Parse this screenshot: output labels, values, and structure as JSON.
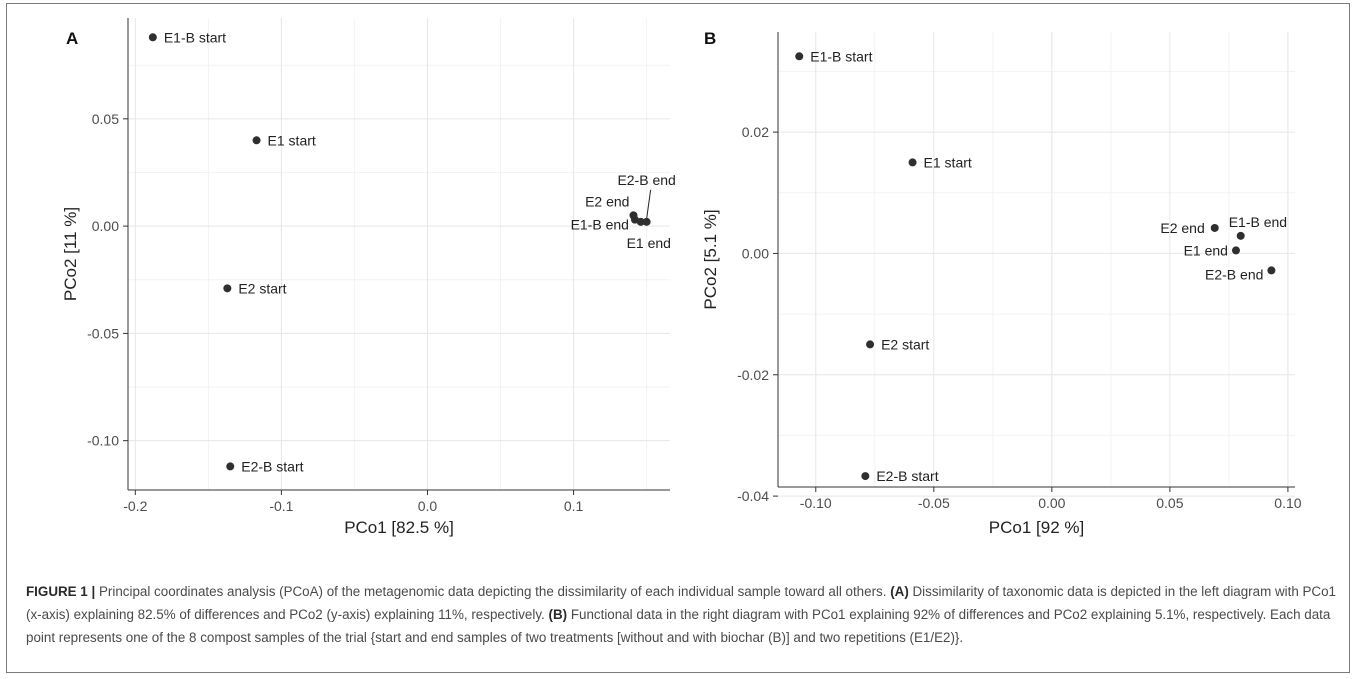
{
  "chart_data": [
    {
      "type": "scatter",
      "panel_label": "A",
      "xlabel": "PCo1 [82.5 %]",
      "ylabel": "PCo2 [11 %]",
      "xlim": [
        -0.205,
        0.166
      ],
      "ylim": [
        -0.123,
        0.097
      ],
      "xticks": [
        -0.2,
        -0.1,
        0.0,
        0.1
      ],
      "xtick_labels": [
        "-0.2",
        "-0.1",
        "0.0",
        "0.1"
      ],
      "yticks": [
        -0.1,
        -0.05,
        0.0,
        0.05
      ],
      "ytick_labels": [
        "-0.10",
        "-0.05",
        "0.00",
        "0.05"
      ],
      "grid": true,
      "points": [
        {
          "label": "E1-B start",
          "x": -0.188,
          "y": 0.088
        },
        {
          "label": "E1 start",
          "x": -0.117,
          "y": 0.04
        },
        {
          "label": "E2 start",
          "x": -0.137,
          "y": -0.029
        },
        {
          "label": "E2-B start",
          "x": -0.135,
          "y": -0.112
        },
        {
          "label": "E2 end",
          "x": 0.141,
          "y": 0.005
        },
        {
          "label": "E1-B end",
          "x": 0.142,
          "y": 0.003
        },
        {
          "label": "E1 end",
          "x": 0.146,
          "y": 0.002
        },
        {
          "label": "E2-B end",
          "x": 0.15,
          "y": 0.002
        }
      ]
    },
    {
      "type": "scatter",
      "panel_label": "B",
      "xlabel": "PCo1 [92 %]",
      "ylabel": "PCo2 [5.1 %]",
      "xlim": [
        -0.116,
        0.103
      ],
      "ylim": [
        -0.0385,
        0.0365
      ],
      "xticks": [
        -0.1,
        -0.05,
        0.0,
        0.05,
        0.1
      ],
      "xtick_labels": [
        "-0.10",
        "-0.05",
        "0.00",
        "0.05",
        "0.10"
      ],
      "yticks": [
        -0.04,
        -0.02,
        0.0,
        0.02
      ],
      "ytick_labels": [
        "-0.04",
        "-0.02",
        "0.00",
        "0.02"
      ],
      "grid": true,
      "points": [
        {
          "label": "E1-B start",
          "x": -0.107,
          "y": 0.0325
        },
        {
          "label": "E1 start",
          "x": -0.059,
          "y": 0.015
        },
        {
          "label": "E2 start",
          "x": -0.077,
          "y": -0.015
        },
        {
          "label": "E2-B start",
          "x": -0.079,
          "y": -0.0367
        },
        {
          "label": "E2 end",
          "x": 0.069,
          "y": 0.0042
        },
        {
          "label": "E1-B end",
          "x": 0.08,
          "y": 0.0029
        },
        {
          "label": "E1 end",
          "x": 0.078,
          "y": 0.0005
        },
        {
          "label": "E2-B end",
          "x": 0.093,
          "y": -0.0028
        }
      ]
    }
  ],
  "caption": {
    "figure_label": "FIGURE 1",
    "separator": "|",
    "text1": "Principal coordinates analysis (PCoA) of the metagenomic data depicting the dissimilarity of each individual sample toward all others.",
    "labelA": "(A)",
    "text2": "Dissimilarity of taxonomic data is depicted in the left diagram with PCo1 (x-axis) explaining 82.5% of differences and PCo2 (y-axis) explaining 11%, respectively.",
    "labelB": "(B)",
    "text3": "Functional data in the right diagram with PCo1 explaining 92% of differences and PCo2 explaining 5.1%, respectively. Each data point represents one of the 8 compost samples of the trial {start and end samples of two treatments [without and with biochar (B)] and two repetitions (E1/E2)}."
  }
}
